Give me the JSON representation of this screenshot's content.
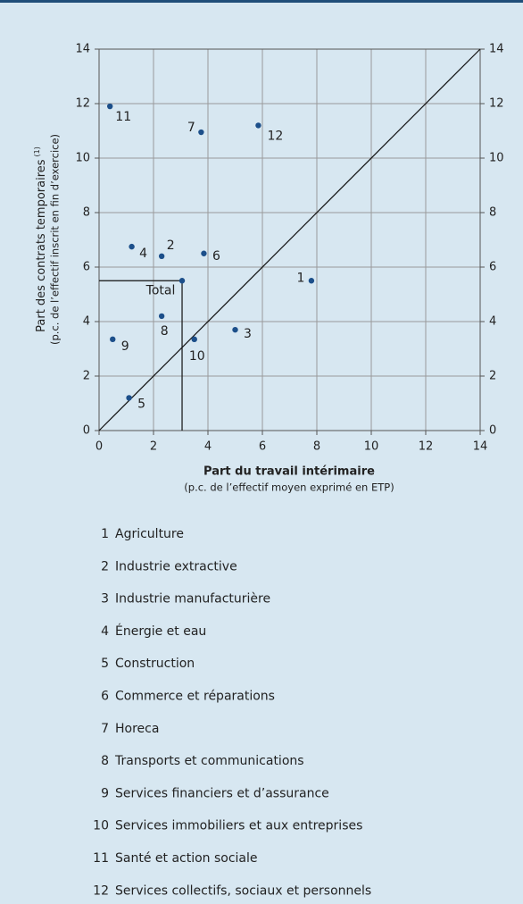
{
  "chart_data": {
    "type": "scatter",
    "xlabel": "Part du travail intérimaire",
    "xlabel_note": "(p.c. de l’effectif moyen exprimé en ETP)",
    "ylabel": "Part des contrats temporaires",
    "ylabel_sup": "(1)",
    "ylabel_note": "(p.c. de l’effectif inscrit en fin d’exercice)",
    "categories": [
      "1",
      "2",
      "3",
      "4",
      "5",
      "6",
      "7",
      "8",
      "9",
      "10",
      "11",
      "12",
      "Total"
    ],
    "x": [
      7.8,
      2.3,
      5.0,
      1.2,
      1.1,
      3.85,
      3.75,
      2.3,
      0.5,
      3.5,
      0.4,
      5.85,
      3.05
    ],
    "values": [
      5.5,
      6.4,
      3.7,
      6.75,
      1.2,
      6.5,
      10.95,
      4.2,
      3.35,
      3.35,
      11.9,
      11.2,
      5.5
    ],
    "color": "#1c4f8a",
    "legend_names": [
      "Agriculture",
      "Industrie extractive",
      "Industrie manufacturière",
      "Énergie et eau",
      "Construction",
      "Commerce et réparations",
      "Horeca",
      "Transports et communications",
      "Services financiers et d’assurance",
      "Services immobiliers et aux entreprises",
      "Santé et action sociale",
      "Services collectifs, sociaux et personnels"
    ],
    "xlim": [
      0,
      14
    ],
    "xticks": [
      0,
      2,
      4,
      6,
      8,
      10,
      12,
      14
    ],
    "ylim": [
      0,
      14
    ],
    "yticks": [
      0,
      2,
      4,
      6,
      8,
      10,
      12,
      14
    ],
    "y2lim": [
      0,
      14
    ],
    "y2ticks": [
      0,
      2,
      4,
      6,
      8,
      10,
      12,
      14
    ],
    "grid": true
  }
}
